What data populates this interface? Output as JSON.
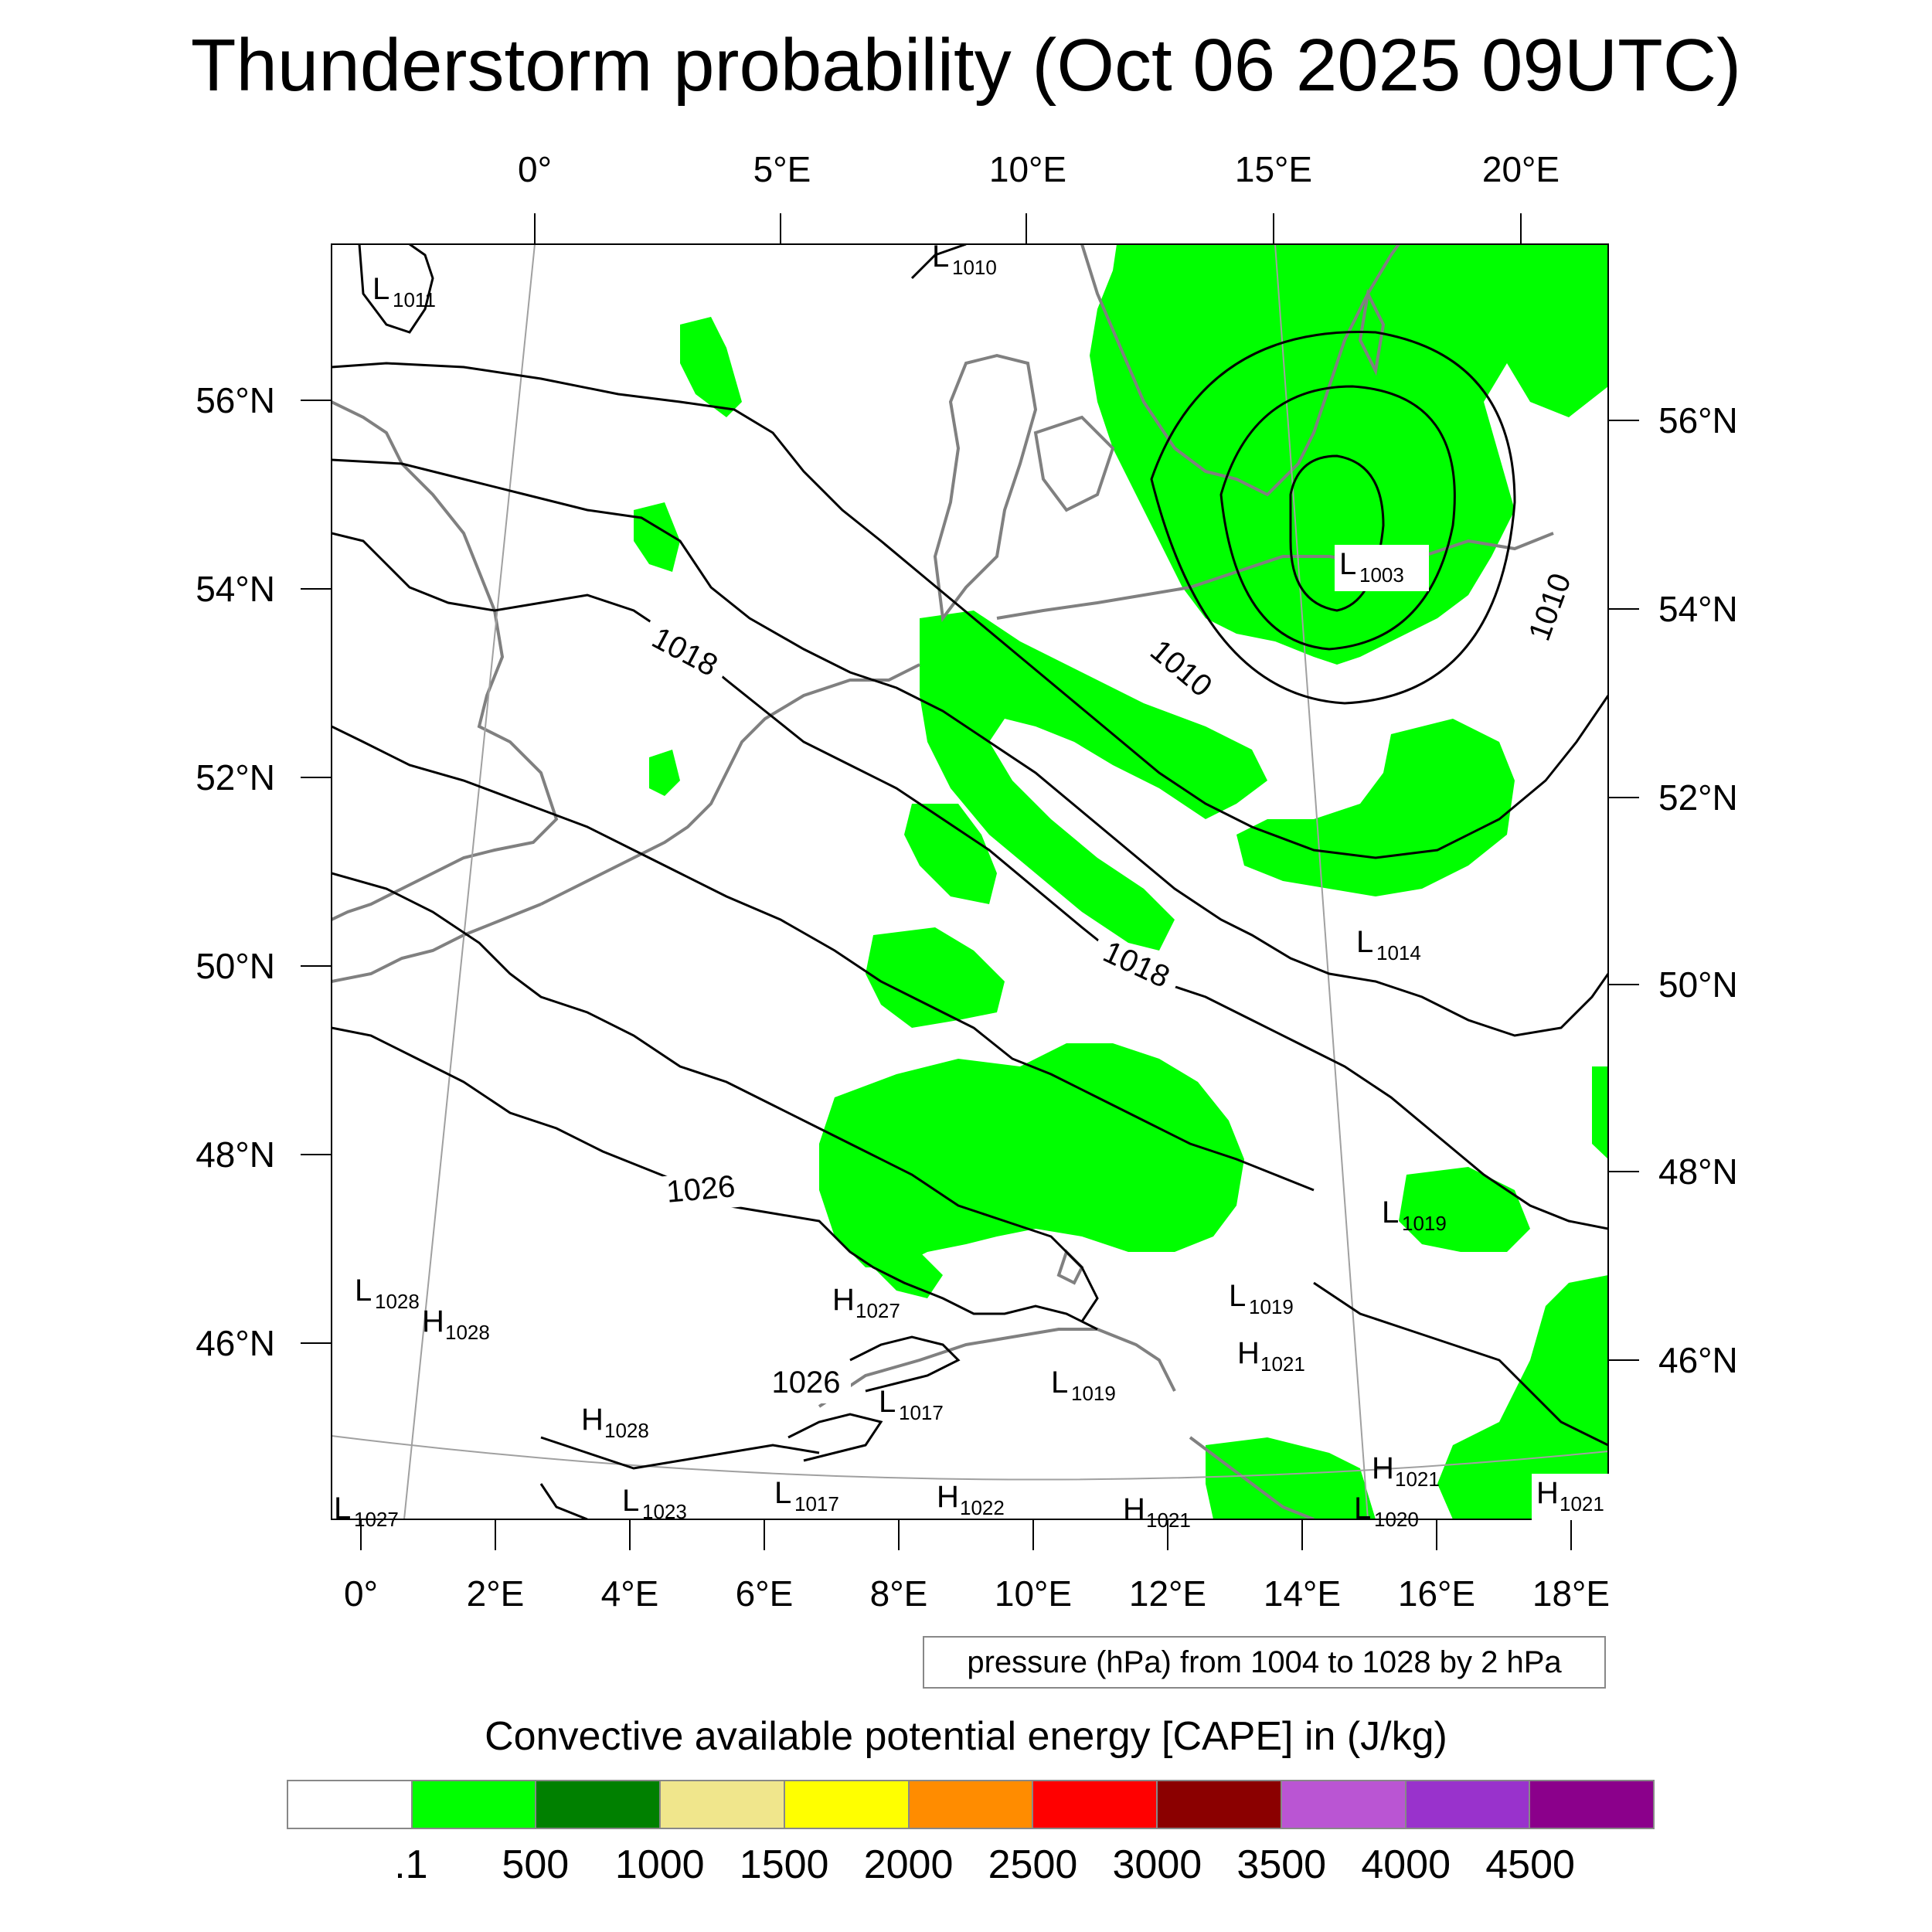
{
  "title": "Thunderstorm probability (Oct 06 2025 09UTC)",
  "map": {
    "projection_note": "",
    "top_lon_labels": [
      "0°",
      "5°E",
      "10°E",
      "15°E",
      "20°E"
    ],
    "bottom_lon_labels": [
      "0°",
      "2°E",
      "4°E",
      "6°E",
      "8°E",
      "10°E",
      "12°E",
      "14°E",
      "16°E",
      "18°E"
    ],
    "left_lat_labels": [
      "56°N",
      "54°N",
      "52°N",
      "50°N",
      "48°N",
      "46°N"
    ],
    "right_lat_labels": [
      "56°N",
      "54°N",
      "52°N",
      "50°N",
      "48°N",
      "46°N"
    ],
    "isobar_labels": [
      "1018",
      "1010",
      "1010",
      "1018",
      "1026",
      "1026"
    ],
    "pressure_centers": [
      {
        "type": "L",
        "value": "1011"
      },
      {
        "type": "L",
        "value": "1010"
      },
      {
        "type": "L",
        "value": "1003"
      },
      {
        "type": "L",
        "value": "1014"
      },
      {
        "type": "L",
        "value": "1019"
      },
      {
        "type": "L",
        "value": "1028"
      },
      {
        "type": "H",
        "value": "1028"
      },
      {
        "type": "H",
        "value": "1027"
      },
      {
        "type": "L",
        "value": "1019"
      },
      {
        "type": "H",
        "value": "1021"
      },
      {
        "type": "L",
        "value": "1017"
      },
      {
        "type": "L",
        "value": "1019"
      },
      {
        "type": "H",
        "value": "1028"
      },
      {
        "type": "L",
        "value": "1023"
      },
      {
        "type": "L",
        "value": "1017"
      },
      {
        "type": "H",
        "value": "1022"
      },
      {
        "type": "H",
        "value": "1021"
      },
      {
        "type": "H",
        "value": "1021"
      },
      {
        "type": "H",
        "value": "1021"
      },
      {
        "type": "L",
        "value": "1027"
      },
      {
        "type": "L",
        "value": "1020"
      }
    ]
  },
  "pressure_note": "pressure (hPa) from 1004 to 1028 by 2 hPa",
  "colorbar": {
    "title": "Convective available potential energy [CAPE] in (J/kg)",
    "colors": [
      "#ffffff",
      "#00ff00",
      "#008000",
      "#f0e68c",
      "#ffff00",
      "#ff8c00",
      "#ff0000",
      "#8b0000",
      "#ba55d3",
      "#9932cc",
      "#8b008b"
    ],
    "labels": [
      ".1",
      "500",
      "1000",
      "1500",
      "2000",
      "2500",
      "3000",
      "3500",
      "4000",
      "4500"
    ]
  },
  "colors": {
    "cape_fill": "#00ff00",
    "isobar": "#000000",
    "coastline": "#808080",
    "graticule": "#a0a0a0"
  }
}
